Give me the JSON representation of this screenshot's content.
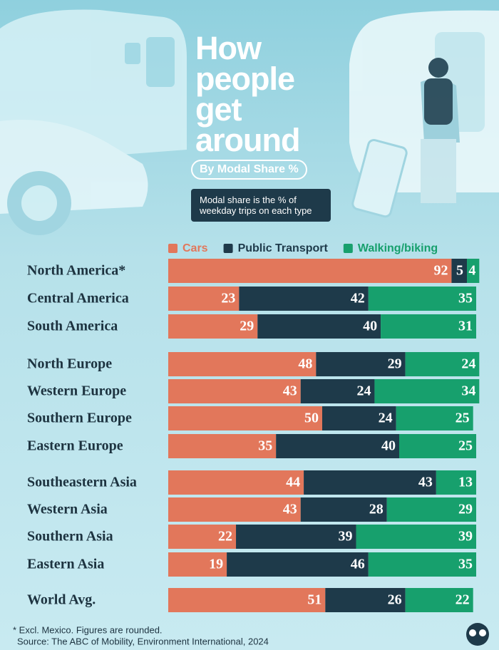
{
  "chart_data": {
    "type": "stacked_bar",
    "title": "How people get around",
    "subtitle": "By Modal Share %",
    "note": "Modal share is the % of weekday trips on each type",
    "categories": [
      "North America*",
      "Central America",
      "South America",
      "North Europe",
      "Western Europe",
      "Southern Europe",
      "Eastern Europe",
      "Southeastern Asia",
      "Western Asia",
      "Southern Asia",
      "Eastern Asia",
      "World Avg."
    ],
    "series": [
      {
        "name": "Cars",
        "color": "#e2775b",
        "values": [
          92,
          23,
          29,
          48,
          43,
          50,
          35,
          44,
          43,
          22,
          19,
          51
        ]
      },
      {
        "name": "Public Transport",
        "color": "#1e3a4a",
        "values": [
          5,
          42,
          40,
          29,
          24,
          24,
          40,
          43,
          28,
          39,
          46,
          26
        ]
      },
      {
        "name": "Walking/biking",
        "color": "#17a06d",
        "values": [
          4,
          35,
          31,
          24,
          34,
          25,
          25,
          13,
          29,
          39,
          35,
          22
        ]
      }
    ],
    "xlim": [
      0,
      100
    ],
    "footnote": "* Excl. Mexico. Figures are rounded.",
    "source": "Source: The ABC of Mobility, Environment International, 2024"
  }
}
